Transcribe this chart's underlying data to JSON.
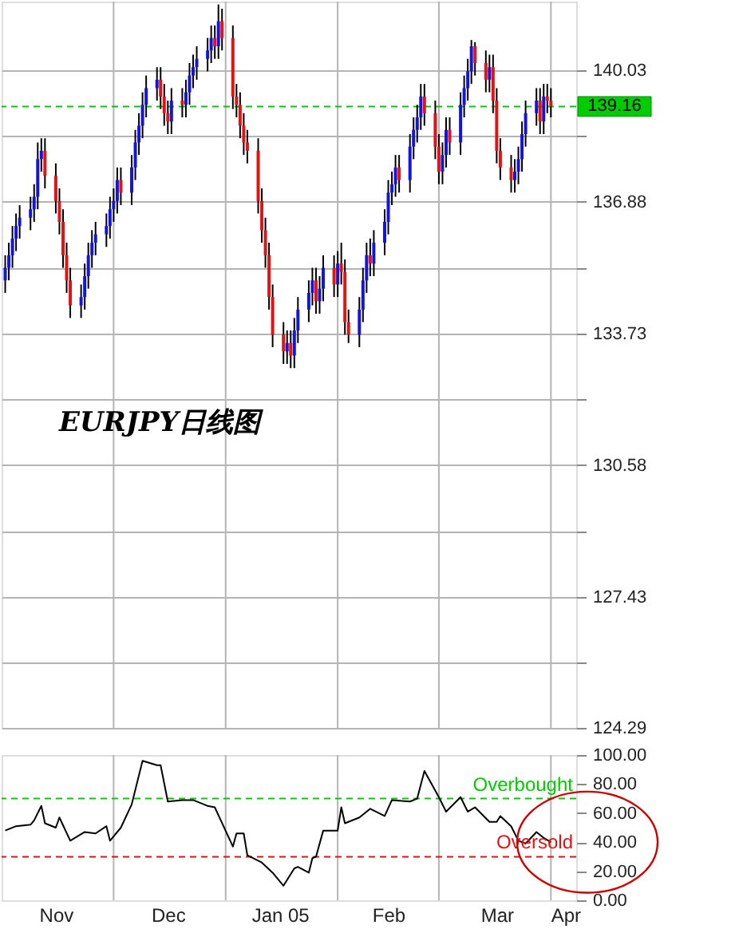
{
  "chart_data": [
    {
      "type": "candlestick",
      "annotations": [
        "EURJPY日线图"
      ],
      "colors": [
        "#1414dc",
        "#1414dc",
        "#1414dc",
        "#1414dc",
        "#1414dc",
        "#1414dc",
        "#1414dc",
        "#1414dc",
        "#1414dc",
        "#e01414",
        "#e01414",
        "#e01414",
        "#e01414",
        "#e01414",
        "#e01414",
        "#1414dc",
        "#1414dc",
        "#1414dc",
        "#1414dc",
        "#1414dc",
        "#1414dc",
        "#1414dc",
        "#1414dc",
        "#1414dc",
        "#e01414",
        "#1414dc",
        "#1414dc",
        "#1414dc",
        "#1414dc",
        "#1414dc",
        "#1414dc",
        "#e01414",
        "#e01414",
        "#e01414",
        "#1414dc",
        "#e01414",
        "#1414dc",
        "#1414dc",
        "#1414dc",
        "#1414dc",
        "#1414dc",
        "#1414dc",
        "#e01414",
        "#1414dc",
        "#e01414",
        "#e01414",
        "#e01414",
        "#e01414",
        "#e01414",
        "#e01414",
        "#e01414",
        "#e01414",
        "#e01414",
        "#e01414",
        "#e01414",
        "#e01414",
        "#1414dc",
        "#e01414",
        "#1414dc",
        "#1414dc",
        "#1414dc",
        "#1414dc",
        "#e01414",
        "#1414dc",
        "#1414dc",
        "#e01414",
        "#1414dc",
        "#e01414",
        "#e01414",
        "#e01414",
        "#1414dc",
        "#1414dc",
        "#1414dc",
        "#e01414",
        "#1414dc",
        "#1414dc",
        "#1414dc",
        "#1414dc",
        "#1414dc",
        "#e01414",
        "#1414dc",
        "#1414dc",
        "#1414dc",
        "#1414dc",
        "#e01414",
        "#e01414",
        "#e01414",
        "#1414dc",
        "#1414dc",
        "#e01414",
        "#1414dc",
        "#1414dc",
        "#1414dc",
        "#1414dc",
        "#e01414",
        "#e01414",
        "#1414dc",
        "#e01414",
        "#e01414",
        "#e01414",
        "#e01414",
        "#1414dc",
        "#1414dc",
        "#1414dc",
        "#1414dc",
        "#1414dc",
        "#e01414",
        "#1414dc",
        "#e01414",
        "#e01414"
      ],
      "x": [
        "2004-11-01",
        "2004-11-02",
        "2004-11-03",
        "2004-11-04",
        "2004-11-05",
        "2004-11-08",
        "2004-11-09",
        "2004-11-10",
        "2004-11-11",
        "2004-11-12",
        "2004-11-15",
        "2004-11-16",
        "2004-11-17",
        "2004-11-18",
        "2004-11-19",
        "2004-11-22",
        "2004-11-23",
        "2004-11-24",
        "2004-11-25",
        "2004-11-26",
        "2004-11-29",
        "2004-11-30",
        "2004-12-01",
        "2004-12-02",
        "2004-12-03",
        "2004-12-06",
        "2004-12-07",
        "2004-12-08",
        "2004-12-09",
        "2004-12-10",
        "2004-12-13",
        "2004-12-14",
        "2004-12-15",
        "2004-12-16",
        "2004-12-17",
        "2004-12-20",
        "2004-12-21",
        "2004-12-22",
        "2004-12-23",
        "2004-12-24",
        "2004-12-27",
        "2004-12-28",
        "2004-12-29",
        "2004-12-30",
        "2004-12-31",
        "2005-01-03",
        "2005-01-04",
        "2005-01-05",
        "2005-01-06",
        "2005-01-07",
        "2005-01-10",
        "2005-01-11",
        "2005-01-12",
        "2005-01-13",
        "2005-01-14",
        "2005-01-17",
        "2005-01-18",
        "2005-01-19",
        "2005-01-20",
        "2005-01-21",
        "2005-01-24",
        "2005-01-25",
        "2005-01-26",
        "2005-01-27",
        "2005-01-28",
        "2005-01-31",
        "2005-02-01",
        "2005-02-02",
        "2005-02-03",
        "2005-02-04",
        "2005-02-07",
        "2005-02-08",
        "2005-02-09",
        "2005-02-10",
        "2005-02-11",
        "2005-02-14",
        "2005-02-15",
        "2005-02-16",
        "2005-02-17",
        "2005-02-18",
        "2005-02-21",
        "2005-02-22",
        "2005-02-23",
        "2005-02-24",
        "2005-02-25",
        "2005-02-28",
        "2005-03-01",
        "2005-03-02",
        "2005-03-03",
        "2005-03-04",
        "2005-03-07",
        "2005-03-08",
        "2005-03-09",
        "2005-03-10",
        "2005-03-11",
        "2005-03-14",
        "2005-03-15",
        "2005-03-16",
        "2005-03-17",
        "2005-03-18",
        "2005-03-21",
        "2005-03-22",
        "2005-03-23",
        "2005-03-24",
        "2005-03-25",
        "2005-03-28",
        "2005-03-29",
        "2005-03-30",
        "2005-03-31",
        "2005-04-01"
      ],
      "ohlc": [
        [
          135.0,
          135.6,
          134.7,
          135.3
        ],
        [
          135.3,
          135.9,
          135.0,
          135.6
        ],
        [
          135.6,
          136.3,
          135.3,
          136.0
        ],
        [
          136.0,
          136.6,
          135.7,
          136.3
        ],
        [
          136.3,
          136.8,
          136.0,
          136.5
        ],
        [
          136.5,
          137.0,
          136.2,
          136.7
        ],
        [
          136.7,
          137.3,
          136.4,
          137.0
        ],
        [
          137.0,
          138.3,
          136.7,
          137.9
        ],
        [
          137.9,
          138.4,
          137.6,
          138.1
        ],
        [
          138.1,
          138.4,
          137.2,
          137.5
        ],
        [
          137.5,
          137.8,
          136.6,
          136.9
        ],
        [
          136.9,
          137.2,
          136.1,
          136.4
        ],
        [
          136.4,
          136.7,
          135.3,
          135.6
        ],
        [
          135.6,
          135.9,
          134.7,
          135.0
        ],
        [
          135.0,
          135.3,
          134.1,
          134.4
        ],
        [
          134.4,
          134.9,
          134.1,
          134.6
        ],
        [
          134.6,
          135.4,
          134.3,
          135.1
        ],
        [
          135.1,
          135.9,
          134.8,
          135.6
        ],
        [
          135.6,
          136.2,
          135.3,
          135.9
        ],
        [
          135.9,
          136.4,
          135.6,
          136.1
        ],
        [
          136.1,
          136.6,
          135.8,
          136.3
        ],
        [
          136.3,
          137.0,
          136.0,
          136.7
        ],
        [
          136.7,
          137.2,
          136.4,
          136.9
        ],
        [
          136.9,
          137.7,
          136.6,
          137.4
        ],
        [
          137.4,
          137.7,
          136.8,
          137.1
        ],
        [
          137.1,
          138.0,
          136.8,
          137.7
        ],
        [
          137.7,
          138.6,
          137.4,
          138.3
        ],
        [
          138.3,
          139.0,
          138.0,
          138.7
        ],
        [
          138.7,
          139.5,
          138.4,
          139.2
        ],
        [
          139.2,
          139.9,
          138.9,
          139.6
        ],
        [
          139.6,
          140.1,
          139.3,
          139.8
        ],
        [
          139.8,
          140.1,
          139.1,
          139.4
        ],
        [
          139.4,
          139.7,
          138.7,
          139.0
        ],
        [
          139.0,
          139.3,
          138.5,
          138.8
        ],
        [
          138.8,
          139.6,
          138.5,
          139.3
        ],
        [
          139.3,
          139.6,
          138.9,
          139.2
        ],
        [
          139.2,
          139.8,
          138.9,
          139.5
        ],
        [
          139.5,
          140.2,
          139.2,
          139.9
        ],
        [
          139.9,
          140.4,
          139.6,
          140.1
        ],
        [
          140.1,
          140.6,
          139.8,
          140.3
        ],
        [
          140.3,
          140.8,
          140.0,
          140.5
        ],
        [
          140.5,
          141.1,
          140.2,
          140.8
        ],
        [
          140.8,
          141.1,
          140.3,
          140.6
        ],
        [
          140.6,
          141.6,
          140.3,
          141.2
        ],
        [
          141.2,
          141.5,
          140.5,
          140.8
        ],
        [
          140.8,
          141.1,
          139.1,
          139.4
        ],
        [
          139.4,
          139.7,
          138.9,
          139.2
        ],
        [
          139.2,
          139.5,
          138.4,
          138.7
        ],
        [
          138.7,
          139.0,
          138.0,
          138.3
        ],
        [
          138.3,
          138.6,
          137.8,
          138.1
        ],
        [
          138.1,
          138.4,
          136.6,
          136.9
        ],
        [
          136.9,
          137.2,
          135.9,
          136.2
        ],
        [
          136.2,
          136.5,
          135.3,
          135.6
        ],
        [
          135.6,
          135.9,
          134.3,
          134.6
        ],
        [
          134.6,
          134.9,
          133.4,
          133.7
        ],
        [
          133.7,
          134.0,
          133.0,
          133.3
        ],
        [
          133.3,
          133.8,
          133.0,
          133.5
        ],
        [
          133.5,
          133.8,
          132.9,
          133.2
        ],
        [
          133.2,
          134.1,
          132.9,
          133.8
        ],
        [
          133.8,
          134.6,
          133.5,
          134.3
        ],
        [
          134.3,
          135.0,
          134.0,
          134.7
        ],
        [
          134.7,
          135.3,
          134.4,
          135.0
        ],
        [
          135.0,
          135.3,
          134.2,
          134.5
        ],
        [
          134.5,
          135.1,
          134.2,
          134.8
        ],
        [
          134.8,
          135.6,
          134.5,
          135.3
        ],
        [
          135.3,
          135.6,
          134.6,
          134.9
        ],
        [
          134.9,
          135.7,
          134.6,
          135.4
        ],
        [
          135.4,
          135.9,
          134.9,
          135.2
        ],
        [
          135.2,
          135.5,
          133.7,
          134.0
        ],
        [
          134.0,
          134.3,
          133.5,
          133.7
        ],
        [
          133.7,
          134.6,
          133.4,
          134.3
        ],
        [
          134.3,
          135.3,
          134.0,
          135.0
        ],
        [
          135.0,
          135.9,
          134.7,
          135.6
        ],
        [
          135.6,
          136.0,
          135.1,
          135.4
        ],
        [
          135.4,
          136.2,
          135.1,
          135.9
        ],
        [
          135.9,
          136.7,
          135.6,
          136.4
        ],
        [
          136.4,
          137.4,
          136.1,
          137.1
        ],
        [
          137.1,
          137.6,
          136.8,
          137.3
        ],
        [
          137.3,
          138.0,
          137.0,
          137.7
        ],
        [
          137.7,
          138.0,
          137.1,
          137.4
        ],
        [
          137.4,
          138.5,
          137.1,
          138.2
        ],
        [
          138.2,
          138.9,
          137.9,
          138.6
        ],
        [
          138.6,
          139.2,
          138.3,
          138.9
        ],
        [
          138.9,
          139.7,
          138.6,
          139.4
        ],
        [
          139.4,
          139.7,
          138.7,
          139.0
        ],
        [
          139.0,
          139.3,
          137.9,
          138.2
        ],
        [
          138.2,
          138.5,
          137.3,
          137.6
        ],
        [
          137.6,
          138.3,
          137.3,
          138.0
        ],
        [
          138.0,
          138.9,
          137.7,
          138.6
        ],
        [
          138.6,
          138.9,
          138.0,
          138.3
        ],
        [
          138.3,
          139.5,
          138.0,
          139.2
        ],
        [
          139.2,
          139.9,
          138.9,
          139.6
        ],
        [
          139.6,
          140.3,
          139.3,
          140.0
        ],
        [
          140.0,
          140.75,
          139.7,
          140.6
        ],
        [
          140.6,
          140.7,
          139.9,
          140.2
        ],
        [
          140.2,
          140.5,
          139.5,
          139.8
        ],
        [
          139.8,
          140.4,
          139.5,
          140.1
        ],
        [
          140.1,
          140.4,
          139.0,
          139.3
        ],
        [
          139.3,
          139.6,
          137.8,
          138.1
        ],
        [
          138.1,
          138.4,
          137.4,
          137.7
        ],
        [
          137.7,
          138.0,
          137.1,
          137.4
        ],
        [
          137.4,
          137.9,
          137.1,
          137.6
        ],
        [
          137.6,
          138.2,
          137.3,
          137.9
        ],
        [
          137.9,
          138.8,
          137.6,
          138.5
        ],
        [
          138.5,
          139.3,
          138.2,
          139.0
        ],
        [
          139.0,
          139.6,
          138.7,
          139.3
        ],
        [
          139.3,
          139.6,
          138.5,
          138.8
        ],
        [
          138.8,
          139.7,
          138.5,
          139.4
        ],
        [
          139.4,
          139.7,
          139.0,
          139.3
        ],
        [
          139.3,
          139.6,
          138.9,
          139.16
        ]
      ],
      "xlim": [
        "2004-10-31",
        "2005-04-08"
      ],
      "xticks": [
        {
          "value": "2004-12-01",
          "label": null
        },
        {
          "value": "2005-01-01",
          "label": null
        },
        {
          "value": "2005-02-01",
          "label": null
        },
        {
          "value": "2005-03-01",
          "label": null
        },
        {
          "value": "2005-04-01",
          "label": null
        }
      ],
      "ylim": [
        124.29,
        141.67
      ],
      "yticks": [
        124.29,
        {
          "value": 125.86,
          "label": null
        },
        127.43,
        {
          "value": 129.0,
          "label": null
        },
        130.58,
        {
          "value": 132.16,
          "label": null
        },
        133.73,
        {
          "value": 135.3,
          "label": null
        },
        136.88,
        {
          "value": 138.46,
          "label": null
        },
        140.03
      ],
      "ref_lines": [
        {
          "axis": "y",
          "value": 139.16,
          "label": "139.16",
          "color": "#00cc00",
          "line_style": "dashed"
        }
      ],
      "grid": true,
      "tick_labels": "y"
    },
    {
      "type": "line",
      "marker": "none",
      "line_style": "solid",
      "series": [
        {
          "color": "#000000",
          "x": [
            "2004-11-01",
            "2004-11-04",
            "2004-11-08",
            "2004-11-09",
            "2004-11-11",
            "2004-11-12",
            "2004-11-15",
            "2004-11-16",
            "2004-11-19",
            "2004-11-23",
            "2004-11-26",
            "2004-11-29",
            "2004-11-30",
            "2004-12-03",
            "2004-12-06",
            "2004-12-09",
            "2004-12-13",
            "2004-12-14",
            "2004-12-16",
            "2004-12-20",
            "2004-12-23",
            "2004-12-27",
            "2004-12-29",
            "2005-01-03",
            "2005-01-04",
            "2005-01-06",
            "2005-01-07",
            "2005-01-11",
            "2005-01-14",
            "2005-01-17",
            "2005-01-20",
            "2005-01-21",
            "2005-01-24",
            "2005-01-25",
            "2005-01-26",
            "2005-01-28",
            "2005-02-01",
            "2005-02-02",
            "2005-02-03",
            "2005-02-07",
            "2005-02-10",
            "2005-02-14",
            "2005-02-16",
            "2005-02-21",
            "2005-02-23",
            "2005-02-25",
            "2005-03-01",
            "2005-03-03",
            "2005-03-07",
            "2005-03-09",
            "2005-03-11",
            "2005-03-15",
            "2005-03-17",
            "2005-03-18",
            "2005-03-21",
            "2005-03-23",
            "2005-03-25",
            "2005-03-28",
            "2005-03-30",
            "2005-04-01"
          ],
          "values": [
            48,
            51,
            52,
            55,
            65,
            53,
            50,
            57,
            41,
            47,
            46,
            51,
            41,
            50,
            66,
            96,
            93,
            93,
            68,
            69,
            69,
            65,
            64,
            37,
            46,
            46,
            31,
            26,
            19,
            10,
            22,
            23,
            19,
            29,
            30,
            48,
            48,
            64,
            53,
            57,
            63,
            58,
            69,
            68,
            70,
            89,
            71,
            61,
            71,
            61,
            64,
            54,
            54,
            58,
            51,
            41,
            39,
            47,
            43,
            40
          ]
        }
      ],
      "xlim": [
        "2004-10-31",
        "2005-04-08"
      ],
      "xticks": [
        {
          "value": "2004-11-15",
          "label": "Nov"
        },
        {
          "value": "2004-12-01",
          "label": null
        },
        {
          "value": "2004-12-16",
          "label": "Dec"
        },
        {
          "value": "2005-01-01",
          "label": null
        },
        {
          "value": "2005-01-16",
          "label": "Jan 05"
        },
        {
          "value": "2005-02-01",
          "label": null
        },
        {
          "value": "2005-02-15",
          "label": "Feb"
        },
        {
          "value": "2005-03-01",
          "label": null
        },
        {
          "value": "2005-03-17",
          "label": "Mar"
        },
        {
          "value": "2005-04-01",
          "label": null
        },
        {
          "value": "2005-04-05",
          "label": "Apr"
        }
      ],
      "ylim": [
        0,
        100
      ],
      "yticks": [
        {
          "value": 0,
          "label": "0.00"
        },
        {
          "value": 20,
          "label": "20.00"
        },
        {
          "value": 40,
          "label": "40.00"
        },
        {
          "value": 60,
          "label": "60.00"
        },
        {
          "value": 80,
          "label": "80.00"
        },
        {
          "value": 100,
          "label": "100.00"
        }
      ],
      "ref_lines": [
        {
          "axis": "y",
          "value": 70,
          "label": "Overbought",
          "color": "#00cc00",
          "line_style": "dashed"
        },
        {
          "axis": "y",
          "value": 30,
          "label": "Oversold",
          "color": "#e01414",
          "line_style": "dashed"
        }
      ],
      "grid": "x"
    }
  ]
}
